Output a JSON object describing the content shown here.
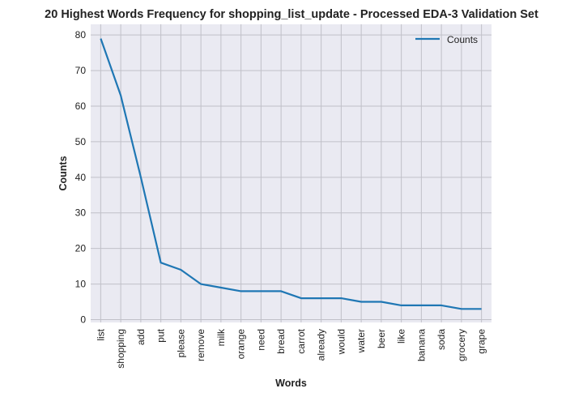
{
  "chart_data": {
    "type": "line",
    "title": "20 Highest Words Frequency for shopping_list_update - Processed EDA-3 Validation Set",
    "xlabel": "Words",
    "ylabel": "Counts",
    "categories": [
      "list",
      "shopping",
      "add",
      "put",
      "please",
      "remove",
      "milk",
      "orange",
      "need",
      "bread",
      "carrot",
      "already",
      "would",
      "water",
      "beer",
      "like",
      "banana",
      "soda",
      "grocery",
      "grape"
    ],
    "series": [
      {
        "name": "Counts",
        "values": [
          79,
          63,
          40,
          16,
          14,
          10,
          9,
          8,
          8,
          8,
          6,
          6,
          6,
          5,
          5,
          4,
          4,
          4,
          3,
          3
        ],
        "color": "#1f77b4"
      }
    ],
    "ylim": [
      -0.8,
      83
    ],
    "yticks": [
      0,
      10,
      20,
      30,
      40,
      50,
      60,
      70,
      80
    ],
    "grid": true,
    "legend": "top-right",
    "background": "#eaeaf2",
    "grid_color": "#c0c0c8"
  }
}
